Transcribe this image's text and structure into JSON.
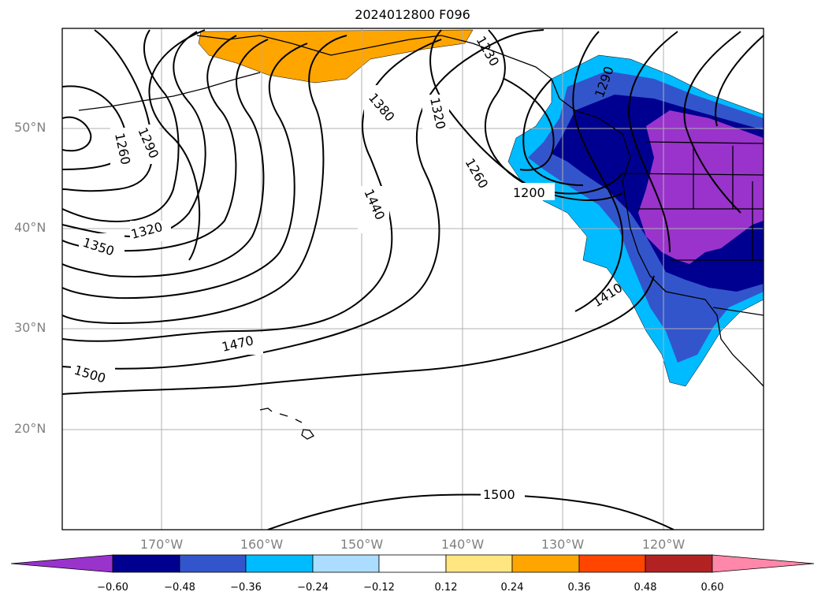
{
  "map": {
    "title": "2024012800 F096",
    "lat_labels": [
      "50°N",
      "40°N",
      "30°N",
      "20°N"
    ],
    "lon_labels": [
      "170°W",
      "160°W",
      "150°W",
      "140°W",
      "130°W",
      "120°W"
    ]
  },
  "contour_labels": [
    "1260",
    "1290",
    "1320",
    "1350",
    "1380",
    "1320",
    "1230",
    "1290",
    "1260",
    "1200",
    "1440",
    "1410",
    "1470",
    "1500",
    "1500"
  ],
  "colorbar": {
    "tick_labels": [
      "−0.60",
      "−0.48",
      "−0.36",
      "−0.24",
      "−0.12",
      "0.12",
      "0.24",
      "0.36",
      "0.48",
      "0.60"
    ],
    "colors": [
      "#9933cc",
      "#000090",
      "#3355cc",
      "#00bbff",
      "#aaddff",
      "#ffffff",
      "#ffe680",
      "#ffa500",
      "#ff4500",
      "#b22222",
      "#ff88aa"
    ]
  }
}
